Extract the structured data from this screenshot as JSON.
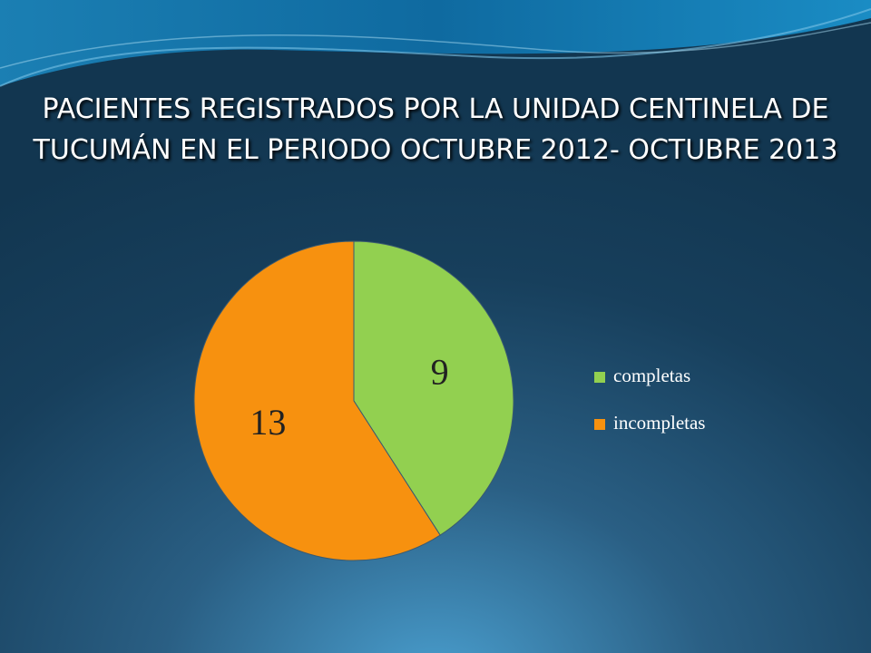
{
  "chart_data": {
    "type": "pie",
    "title": "PACIENTES REGISTRADOS POR LA UNIDAD CENTINELA DE TUCUMÁN EN EL PERIODO OCTUBRE 2012- OCTUBRE 2013",
    "categories": [
      "completas",
      "incompletas"
    ],
    "values": [
      9,
      13
    ],
    "colors": [
      "#92d050",
      "#f7910f"
    ],
    "legend": "right"
  }
}
